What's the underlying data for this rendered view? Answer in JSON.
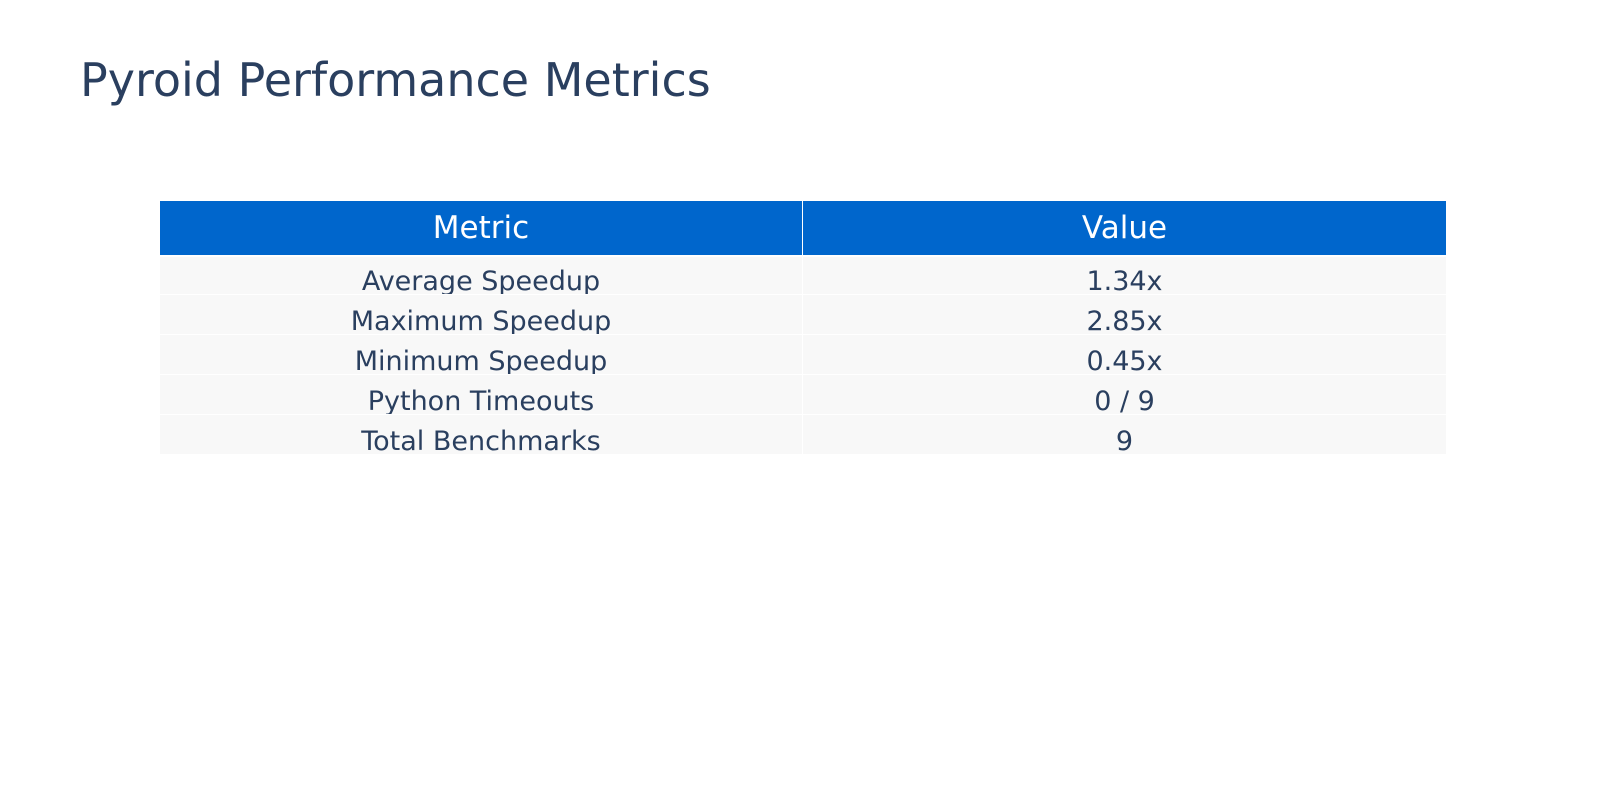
{
  "chart_data": {
    "type": "table",
    "title": "Pyroid Performance Metrics",
    "columns": [
      "Metric",
      "Value"
    ],
    "rows": [
      [
        "Average Speedup",
        "1.34x"
      ],
      [
        "Maximum Speedup",
        "2.85x"
      ],
      [
        "Minimum Speedup",
        "0.45x"
      ],
      [
        "Python Timeouts",
        "0 / 9"
      ],
      [
        "Total Benchmarks",
        "9"
      ]
    ],
    "colors": {
      "header_fill": "#0066cc",
      "header_text": "#ffffff",
      "cell_fill": "#f8f8f8",
      "cell_text": "#2a3f5f",
      "title_text": "#2a3f5f"
    }
  }
}
